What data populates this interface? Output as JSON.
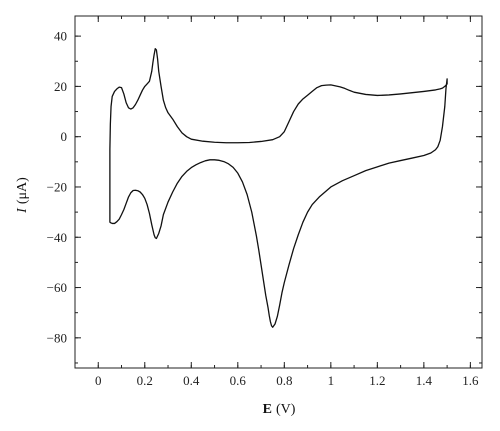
{
  "chart_data": {
    "type": "line",
    "xlabel": {
      "symbol": "E",
      "unit": "(V)"
    },
    "ylabel": {
      "symbol": "I",
      "unit": "(μA)"
    },
    "xlim": [
      -0.1,
      1.65
    ],
    "ylim": [
      -92,
      48
    ],
    "grid": false,
    "legend": "none",
    "colors": {
      "line": "#111111",
      "axis": "#222222"
    },
    "x_ticks": [
      {
        "value": 0,
        "label": "0"
      },
      {
        "value": 0.2,
        "label": "0.2"
      },
      {
        "value": 0.4,
        "label": "0.4"
      },
      {
        "value": 0.6,
        "label": "0.6"
      },
      {
        "value": 0.8,
        "label": "0.8"
      },
      {
        "value": 1.0,
        "label": "1"
      },
      {
        "value": 1.2,
        "label": "1.2"
      },
      {
        "value": 1.4,
        "label": "1.4"
      },
      {
        "value": 1.6,
        "label": "1.6"
      }
    ],
    "y_ticks": [
      {
        "value": 40,
        "label": "40"
      },
      {
        "value": 20,
        "label": "20"
      },
      {
        "value": 0,
        "label": "0"
      },
      {
        "value": -20,
        "label": "−20"
      },
      {
        "value": -40,
        "label": "−40"
      },
      {
        "value": -60,
        "label": "−60"
      },
      {
        "value": -80,
        "label": "−80"
      }
    ],
    "x_minor_step": 0.1,
    "y_minor_step": 10,
    "series": [
      {
        "x": [
          0.05,
          0.052,
          0.055,
          0.06,
          0.07,
          0.08,
          0.09,
          0.1,
          0.11,
          0.12,
          0.13,
          0.14,
          0.15,
          0.16,
          0.17,
          0.18,
          0.19,
          0.2,
          0.21,
          0.22,
          0.23,
          0.235,
          0.24,
          0.245,
          0.25,
          0.255,
          0.26,
          0.27,
          0.28,
          0.29,
          0.3,
          0.32,
          0.34,
          0.36,
          0.38,
          0.4,
          0.45,
          0.5,
          0.55,
          0.6,
          0.65,
          0.7,
          0.75,
          0.78,
          0.8,
          0.82,
          0.84,
          0.86,
          0.88,
          0.9,
          0.92,
          0.94,
          0.96,
          0.98,
          1.0,
          1.02,
          1.04,
          1.06,
          1.08,
          1.1,
          1.15,
          1.2,
          1.25,
          1.3,
          1.35,
          1.4,
          1.45,
          1.47,
          1.48,
          1.49,
          1.5,
          1.5,
          1.495,
          1.49,
          1.48,
          1.47,
          1.46,
          1.45,
          1.43,
          1.4,
          1.35,
          1.3,
          1.25,
          1.2,
          1.15,
          1.1,
          1.05,
          1.0,
          0.95,
          0.92,
          0.9,
          0.88,
          0.86,
          0.84,
          0.82,
          0.8,
          0.79,
          0.78,
          0.77,
          0.76,
          0.75,
          0.745,
          0.74,
          0.735,
          0.73,
          0.72,
          0.71,
          0.7,
          0.69,
          0.68,
          0.66,
          0.64,
          0.62,
          0.6,
          0.58,
          0.56,
          0.54,
          0.52,
          0.5,
          0.48,
          0.46,
          0.44,
          0.42,
          0.4,
          0.38,
          0.36,
          0.34,
          0.32,
          0.3,
          0.28,
          0.27,
          0.26,
          0.25,
          0.245,
          0.24,
          0.235,
          0.23,
          0.22,
          0.21,
          0.2,
          0.19,
          0.18,
          0.17,
          0.16,
          0.15,
          0.14,
          0.13,
          0.12,
          0.11,
          0.1,
          0.09,
          0.08,
          0.07,
          0.06,
          0.055,
          0.05,
          0.05
        ],
        "y": [
          -5,
          5,
          12,
          16,
          18,
          19,
          19.7,
          19.5,
          17,
          13.5,
          11.5,
          11,
          11.5,
          12.8,
          14.5,
          16.5,
          18.5,
          20,
          21,
          22,
          26,
          29.5,
          32.5,
          35,
          34.5,
          31,
          26,
          20,
          14.5,
          11.5,
          9.5,
          7,
          4,
          1.5,
          0,
          -1,
          -1.8,
          -2.2,
          -2.4,
          -2.4,
          -2.3,
          -1.9,
          -1.2,
          0,
          2,
          6,
          10,
          13,
          15,
          16.5,
          18,
          19.5,
          20.3,
          20.5,
          20.6,
          20.2,
          19.8,
          19.2,
          18.4,
          17.7,
          16.8,
          16.4,
          16.6,
          17,
          17.5,
          18,
          18.6,
          19,
          19.3,
          20,
          21,
          23,
          19,
          12,
          4,
          -1.5,
          -4,
          -5.2,
          -6.5,
          -7.5,
          -8.5,
          -9.5,
          -10.5,
          -12,
          -13.5,
          -15.5,
          -17.5,
          -20,
          -24,
          -27,
          -30,
          -34,
          -39,
          -44.5,
          -51,
          -58,
          -62,
          -67,
          -71.5,
          -74.5,
          -75.8,
          -75.2,
          -73.5,
          -71,
          -68,
          -63,
          -57,
          -51,
          -45,
          -39.5,
          -30,
          -23,
          -18,
          -14.5,
          -12.2,
          -10.8,
          -9.9,
          -9.4,
          -9.2,
          -9.2,
          -9.6,
          -10.3,
          -11.2,
          -12.3,
          -13.8,
          -15.8,
          -18.5,
          -22,
          -26,
          -31,
          -35.5,
          -38.5,
          -40.5,
          -40.2,
          -39,
          -37,
          -35,
          -30.5,
          -27,
          -24.5,
          -23,
          -22,
          -21.5,
          -21.3,
          -21.4,
          -22.3,
          -24,
          -26.5,
          -29,
          -31,
          -32.8,
          -33.8,
          -34.5,
          -34.5,
          -34.3,
          -34,
          -5
        ]
      }
    ]
  }
}
